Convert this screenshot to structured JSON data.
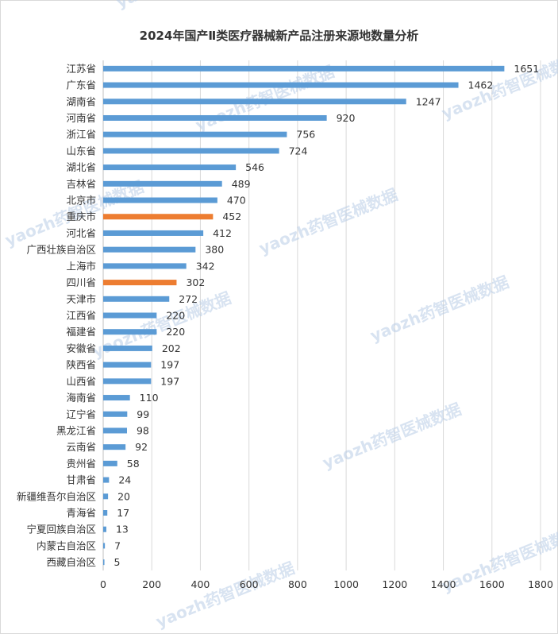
{
  "chart_data": {
    "type": "bar",
    "orientation": "horizontal",
    "title": "2024年国产Ⅱ类医疗器械新产品注册来源地数量分析",
    "xlabel": "",
    "ylabel": "",
    "xlim": [
      0,
      1800
    ],
    "ticks": [
      0,
      200,
      400,
      600,
      800,
      1000,
      1200,
      1400,
      1600,
      1800
    ],
    "grid": true,
    "legend": "none",
    "colors": {
      "default": "#5b9bd5",
      "highlight": "#ed7d31"
    },
    "categories": [
      "江苏省",
      "广东省",
      "湖南省",
      "河南省",
      "浙江省",
      "山东省",
      "湖北省",
      "吉林省",
      "北京市",
      "重庆市",
      "河北省",
      "广西壮族自治区",
      "上海市",
      "四川省",
      "天津市",
      "江西省",
      "福建省",
      "安徽省",
      "陕西省",
      "山西省",
      "海南省",
      "辽宁省",
      "黑龙江省",
      "云南省",
      "贵州省",
      "甘肃省",
      "新疆维吾尔自治区",
      "青海省",
      "宁夏回族自治区",
      "内蒙古自治区",
      "西藏自治区"
    ],
    "values": [
      1651,
      1462,
      1247,
      920,
      756,
      724,
      546,
      489,
      470,
      452,
      412,
      380,
      342,
      302,
      272,
      220,
      220,
      202,
      197,
      197,
      110,
      99,
      98,
      92,
      58,
      24,
      20,
      17,
      13,
      7,
      5
    ],
    "highlighted": [
      "重庆市",
      "四川省"
    ]
  },
  "watermark": "yaozh药智医械数据"
}
